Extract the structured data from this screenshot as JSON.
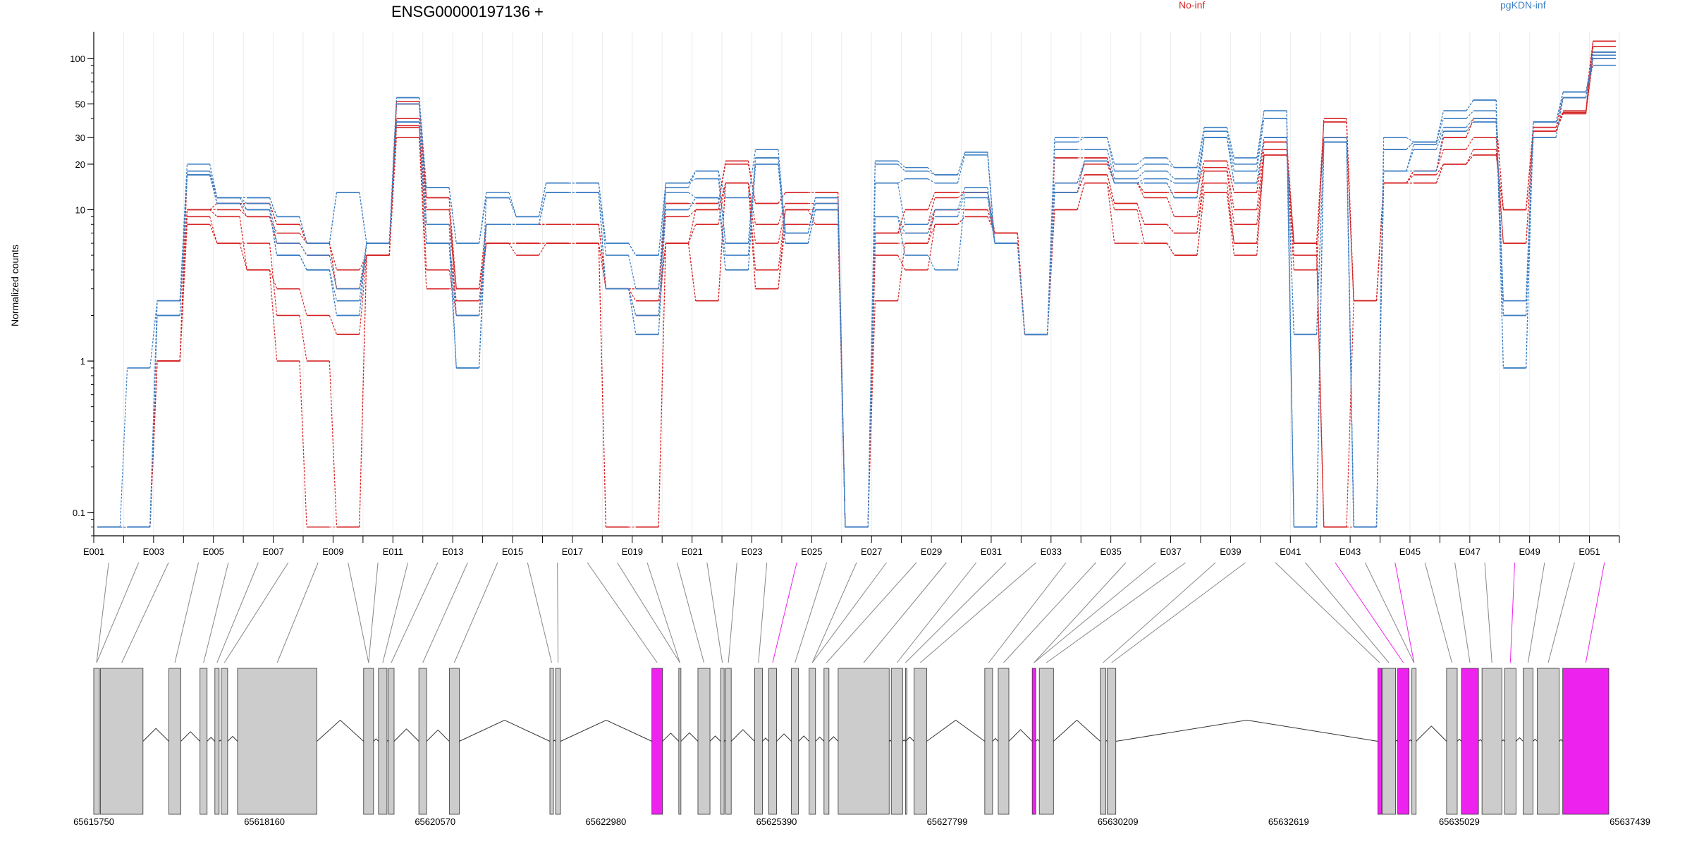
{
  "chart_data": {
    "type": "line",
    "title": "ENSG00000197136 +",
    "ylabel": "Normalized counts",
    "yscale": "log",
    "ylim": [
      0.07,
      150
    ],
    "yticks": [
      "0.1",
      "1",
      "10",
      "20",
      "30",
      "50",
      "100"
    ],
    "grid": "vertical",
    "legend": [
      {
        "label": "No-inf",
        "color": "#d62728"
      },
      {
        "label": "pgKDN-inf",
        "color": "#3d7fc4"
      }
    ],
    "exon_labels": [
      "E001",
      "E003",
      "E005",
      "E007",
      "E009",
      "E011",
      "E013",
      "E015",
      "E017",
      "E019",
      "E021",
      "E023",
      "E025",
      "E027",
      "E029",
      "E031",
      "E033",
      "E035",
      "E037",
      "E039",
      "E041",
      "E043",
      "E045",
      "E047",
      "E049",
      "E051"
    ],
    "coordinate_labels": [
      "65615750",
      "65618160",
      "65620570",
      "65622980",
      "65625390",
      "65627799",
      "65630209",
      "65632619",
      "65635029",
      "65637439"
    ],
    "highlighted_exons": [
      "E024",
      "E042",
      "E044",
      "E048",
      "E051"
    ],
    "highlight_color": "#ee22ee",
    "exon_color": "#cccccc",
    "series": [
      {
        "group": "No-inf",
        "values": [
          0.08,
          0.08,
          1,
          8,
          6,
          6,
          2,
          1,
          0.08,
          5,
          30,
          3,
          3,
          6,
          5,
          6,
          6,
          0.08,
          0.08,
          6,
          2.5,
          15,
          3,
          10,
          8,
          0.08,
          2.5,
          6,
          10,
          10,
          7,
          1.5,
          10,
          15,
          6,
          6,
          5,
          13,
          6,
          23,
          5,
          0.08,
          0.08,
          15,
          15,
          20,
          23,
          10,
          33,
          43,
          100
        ]
      },
      {
        "group": "No-inf",
        "values": [
          0.08,
          0.08,
          1,
          9,
          6,
          4,
          1,
          0.08,
          0.08,
          5,
          35,
          4,
          2,
          6,
          6,
          6,
          6,
          0.08,
          0.08,
          6,
          2.5,
          15,
          3,
          8,
          8,
          0.08,
          5,
          4,
          8,
          9,
          7,
          1.5,
          10,
          15,
          10,
          6,
          5,
          13,
          5,
          23,
          6,
          0.08,
          0.08,
          15,
          15,
          20,
          23,
          10,
          33,
          44,
          105
        ]
      },
      {
        "group": "No-inf",
        "values": [
          0.08,
          0.08,
          1,
          10,
          9,
          4,
          3,
          2,
          1.5,
          5,
          36,
          6,
          2.5,
          6,
          6,
          6,
          6,
          3,
          2.5,
          6,
          8,
          15,
          4,
          10,
          10,
          0.08,
          6,
          6,
          8,
          9,
          7,
          1.5,
          13,
          17,
          11,
          8,
          7,
          15,
          6,
          23,
          6,
          0.08,
          2.5,
          15,
          15,
          20,
          23,
          10,
          33,
          44,
          110
        ]
      },
      {
        "group": "No-inf",
        "values": [
          0.08,
          0.08,
          1,
          10,
          10,
          9,
          6,
          5,
          3,
          5,
          40,
          8,
          3,
          6,
          6,
          6,
          6,
          3,
          2,
          6,
          10,
          15,
          6,
          10,
          10,
          0.08,
          7,
          7,
          10,
          10,
          7,
          1.5,
          13,
          17,
          11,
          8,
          7,
          18,
          8,
          23,
          4,
          40,
          2.5,
          15,
          17,
          20,
          25,
          6,
          33,
          44,
          120
        ]
      },
      {
        "group": "No-inf",
        "values": [
          0.08,
          0.08,
          1,
          10,
          11,
          9,
          7,
          6,
          4,
          5,
          50,
          10,
          3,
          8,
          8,
          8,
          8,
          3,
          3,
          9,
          10,
          15,
          8,
          11,
          11,
          0.08,
          7,
          8,
          12,
          13,
          7,
          1.5,
          15,
          20,
          15,
          12,
          9,
          19,
          10,
          25,
          6,
          30,
          2.5,
          15,
          18,
          25,
          30,
          6,
          33,
          44,
          130
        ]
      },
      {
        "group": "No-inf",
        "values": [
          0.08,
          0.08,
          1,
          17,
          11,
          11,
          8,
          6,
          3,
          5,
          50,
          12,
          3,
          8,
          8,
          8,
          8,
          3,
          3,
          11,
          11,
          20,
          11,
          13,
          13,
          0.08,
          7,
          10,
          13,
          13,
          7,
          1.5,
          22,
          22,
          15,
          13,
          13,
          21,
          13,
          28,
          6,
          38,
          2.5,
          15,
          18,
          30,
          40,
          10,
          35,
          45,
          130
        ]
      },
      {
        "group": "No-inf",
        "values": [
          0.08,
          0.08,
          1,
          17,
          11,
          11,
          8,
          6,
          3,
          5,
          52,
          12,
          2,
          8,
          8,
          8,
          8,
          3,
          3,
          11,
          11,
          21,
          11,
          13,
          13,
          0.08,
          7,
          10,
          13,
          13,
          7,
          1.5,
          22,
          22,
          15,
          13,
          13,
          21,
          13,
          28,
          6,
          38,
          2.5,
          15,
          18,
          30,
          40,
          10,
          35,
          55,
          130
        ]
      },
      {
        "group": "pgKDN-inf",
        "values": [
          0.08,
          0.9,
          2.5,
          17,
          12,
          12,
          9,
          6,
          13,
          6,
          55,
          14,
          6,
          13,
          9,
          15,
          15,
          6,
          5,
          14,
          18,
          12,
          25,
          7,
          12,
          0.08,
          21,
          19,
          17,
          24,
          6,
          1.5,
          30,
          30,
          20,
          22,
          19,
          35,
          22,
          45,
          0.08,
          30,
          0.08,
          30,
          28,
          45,
          53,
          0.9,
          38,
          60,
          90
        ]
      },
      {
        "group": "pgKDN-inf",
        "values": [
          0.08,
          0.08,
          2.5,
          20,
          12,
          12,
          9,
          6,
          13,
          6,
          55,
          14,
          6,
          12,
          9,
          15,
          15,
          6,
          5,
          15,
          18,
          6,
          22,
          7,
          12,
          0.08,
          20,
          18,
          17,
          24,
          6,
          1.5,
          28,
          30,
          18,
          20,
          19,
          33,
          20,
          45,
          0.08,
          28,
          0.08,
          25,
          28,
          45,
          53,
          0.9,
          38,
          60,
          100
        ]
      },
      {
        "group": "pgKDN-inf",
        "values": [
          0.08,
          0.08,
          2.5,
          18,
          12,
          11,
          6,
          5,
          3,
          6,
          50,
          8,
          0.9,
          12,
          9,
          15,
          15,
          5,
          3,
          15,
          16,
          6,
          22,
          7,
          11,
          0.08,
          15,
          16,
          15,
          23,
          6,
          1.5,
          25,
          25,
          16,
          18,
          16,
          30,
          18,
          40,
          0.08,
          28,
          0.08,
          25,
          28,
          40,
          45,
          2.5,
          38,
          60,
          100
        ]
      },
      {
        "group": "pgKDN-inf",
        "values": [
          0.08,
          0.08,
          2,
          17,
          12,
          10,
          5,
          4,
          2.5,
          6,
          38,
          6,
          0.9,
          8,
          8,
          13,
          13,
          3,
          2,
          13,
          12,
          5,
          20,
          6,
          10,
          0.08,
          15,
          8,
          10,
          14,
          6,
          1.5,
          15,
          21,
          15,
          16,
          15,
          30,
          15,
          30,
          0.08,
          28,
          0.08,
          18,
          27,
          35,
          40,
          2.5,
          38,
          55,
          105
        ]
      },
      {
        "group": "pgKDN-inf",
        "values": [
          0.08,
          0.08,
          2,
          17,
          11,
          10,
          5,
          4,
          2,
          6,
          38,
          6,
          2,
          8,
          8,
          13,
          13,
          3,
          1.5,
          10,
          12,
          4,
          20,
          6,
          10,
          0.08,
          9,
          7,
          9,
          13,
          6,
          1.5,
          13,
          21,
          15,
          15,
          12,
          30,
          15,
          30,
          1.5,
          28,
          0.08,
          18,
          25,
          33,
          38,
          2,
          30,
          55,
          110
        ]
      },
      {
        "group": "pgKDN-inf",
        "values": [
          0.08,
          0.08,
          2,
          17,
          11,
          10,
          5,
          4,
          2,
          6,
          38,
          6,
          2,
          8,
          8,
          13,
          13,
          3,
          1.5,
          10,
          12,
          4,
          20,
          6,
          10,
          0.08,
          9,
          5,
          4,
          12,
          6,
          1.5,
          13,
          21,
          15,
          15,
          12,
          30,
          15,
          30,
          1.5,
          28,
          0.08,
          18,
          18,
          33,
          38,
          2,
          30,
          55,
          110
        ]
      }
    ]
  }
}
